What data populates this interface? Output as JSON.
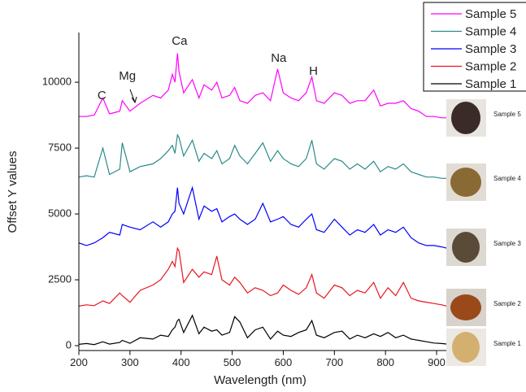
{
  "chart_data": {
    "type": "line",
    "x_label": "Wavelength (nm)",
    "y_label": "Offset Y values",
    "x": [
      200,
      215,
      230,
      247,
      260,
      280,
      285,
      300,
      320,
      345,
      360,
      375,
      383,
      388,
      393,
      396,
      405,
      422,
      435,
      445,
      460,
      470,
      480,
      495,
      505,
      515,
      530,
      545,
      560,
      575,
      589,
      600,
      615,
      630,
      645,
      656,
      665,
      680,
      700,
      715,
      730,
      745,
      760,
      777,
      790,
      805,
      820,
      835,
      850,
      865,
      880,
      895,
      910,
      920
    ],
    "series": [
      {
        "name": "Sample 5",
        "color": "#ff00ff",
        "values": [
          8700,
          8700,
          8750,
          9400,
          8800,
          8900,
          9300,
          8900,
          9200,
          9500,
          9400,
          9700,
          10300,
          10000,
          11100,
          10400,
          9600,
          10100,
          9400,
          9900,
          9700,
          10000,
          9400,
          9500,
          9800,
          9300,
          9200,
          9500,
          9600,
          9300,
          10500,
          9600,
          9400,
          9300,
          9600,
          10200,
          9300,
          9200,
          9600,
          9500,
          9200,
          9300,
          9300,
          9700,
          9100,
          9200,
          9200,
          9300,
          9000,
          8900,
          8700,
          8700,
          8650,
          8650
        ]
      },
      {
        "name": "Sample 4",
        "color": "#2a8a8a",
        "values": [
          6400,
          6450,
          6400,
          7500,
          6500,
          6700,
          7700,
          6600,
          6800,
          6900,
          7100,
          7400,
          7600,
          7300,
          8000,
          7900,
          7200,
          7800,
          7000,
          7300,
          7100,
          7400,
          6900,
          7100,
          7600,
          7200,
          6900,
          7300,
          7700,
          7000,
          7400,
          7100,
          6900,
          6800,
          7100,
          7800,
          6900,
          6700,
          7100,
          7000,
          6700,
          6900,
          6700,
          7000,
          6600,
          6800,
          6700,
          6900,
          6600,
          6500,
          6400,
          6400,
          6350,
          6350
        ]
      },
      {
        "name": "Sample 3",
        "color": "#0000ff",
        "values": [
          3900,
          3800,
          3900,
          4100,
          4300,
          4200,
          4600,
          4500,
          4400,
          4700,
          4500,
          4700,
          5000,
          5100,
          6000,
          5400,
          5000,
          6000,
          4800,
          5300,
          5100,
          5200,
          4700,
          4900,
          5000,
          4800,
          4600,
          4800,
          5400,
          4700,
          4800,
          4900,
          4600,
          4500,
          4800,
          5000,
          4400,
          4300,
          4800,
          4500,
          4200,
          4400,
          4300,
          4600,
          4200,
          4400,
          4300,
          4500,
          4100,
          3900,
          3800,
          3800,
          3750,
          3700
        ]
      },
      {
        "name": "Sample 2",
        "color": "#e8141e",
        "values": [
          1500,
          1550,
          1520,
          1700,
          1600,
          2000,
          1900,
          1650,
          2100,
          2300,
          2500,
          2900,
          3200,
          3000,
          3700,
          3600,
          2400,
          2900,
          2600,
          2800,
          2700,
          3400,
          2500,
          2300,
          2600,
          2400,
          2000,
          2200,
          2100,
          1900,
          2000,
          2300,
          2100,
          1950,
          2200,
          2700,
          2000,
          1800,
          2300,
          2200,
          1900,
          2100,
          2000,
          2400,
          1800,
          2200,
          1900,
          2400,
          1800,
          1700,
          1650,
          1600,
          1550,
          1500
        ]
      },
      {
        "name": "Sample 1",
        "color": "#000000",
        "values": [
          50,
          80,
          40,
          150,
          60,
          120,
          200,
          90,
          300,
          250,
          400,
          350,
          600,
          700,
          950,
          1000,
          500,
          1150,
          450,
          700,
          550,
          600,
          400,
          500,
          1100,
          900,
          300,
          600,
          700,
          250,
          550,
          400,
          350,
          500,
          600,
          950,
          400,
          300,
          500,
          550,
          250,
          400,
          300,
          450,
          350,
          500,
          300,
          400,
          250,
          200,
          150,
          100,
          80,
          60
        ]
      }
    ],
    "xlim": [
      200,
      920
    ],
    "ylim": [
      -200,
      11800
    ],
    "xticks": [
      200,
      300,
      400,
      500,
      600,
      700,
      800,
      900
    ],
    "yticks": [
      0,
      2500,
      5000,
      7500,
      10000
    ],
    "annotations": [
      {
        "text": "C",
        "x": 245,
        "y": 9350
      },
      {
        "text": "Mg",
        "x": 295,
        "y": 10090
      },
      {
        "text": "Ca",
        "x": 397,
        "y": 11420
      },
      {
        "text": "Na",
        "x": 591,
        "y": 10770
      },
      {
        "text": "H",
        "x": 659,
        "y": 10280
      }
    ],
    "legend": "top-right",
    "image_labels": [
      "Sample 5",
      "Sample 4",
      "Sample 3",
      "Sample 2",
      "Sample 1"
    ]
  }
}
